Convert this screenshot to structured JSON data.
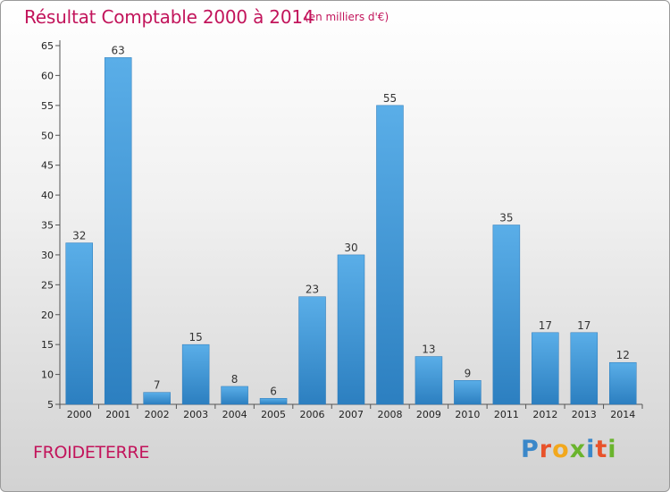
{
  "title": "Résultat Comptable 2000 à 2014",
  "subtitle": "(en milliers d'€)",
  "commune": "FROIDETERRE",
  "logo": {
    "text": "Proxiti",
    "letters": [
      "P",
      "r",
      "o",
      "x",
      "i",
      "t",
      "i"
    ],
    "colors": [
      "#3a87c9",
      "#e8522a",
      "#f2a81d",
      "#6ab42d",
      "#3a87c9",
      "#e8522a",
      "#6ab42d"
    ]
  },
  "colors": {
    "title": "#c2145b",
    "bar_top": "#5aaee8",
    "bar_bottom": "#2c7fc0",
    "axis": "#555555",
    "grid_tick": "#555555"
  },
  "chart_data": {
    "type": "bar",
    "categories": [
      "2000",
      "2001",
      "2002",
      "2003",
      "2004",
      "2005",
      "2006",
      "2007",
      "2008",
      "2009",
      "2010",
      "2011",
      "2012",
      "2013",
      "2014"
    ],
    "values": [
      32,
      63,
      7,
      15,
      8,
      6,
      23,
      30,
      55,
      13,
      9,
      35,
      17,
      17,
      12
    ],
    "ylim": [
      5,
      65
    ],
    "yticks": [
      5,
      10,
      15,
      20,
      25,
      30,
      35,
      40,
      45,
      50,
      55,
      60,
      65
    ],
    "grid": false,
    "data_labels": true,
    "legend": "none"
  }
}
